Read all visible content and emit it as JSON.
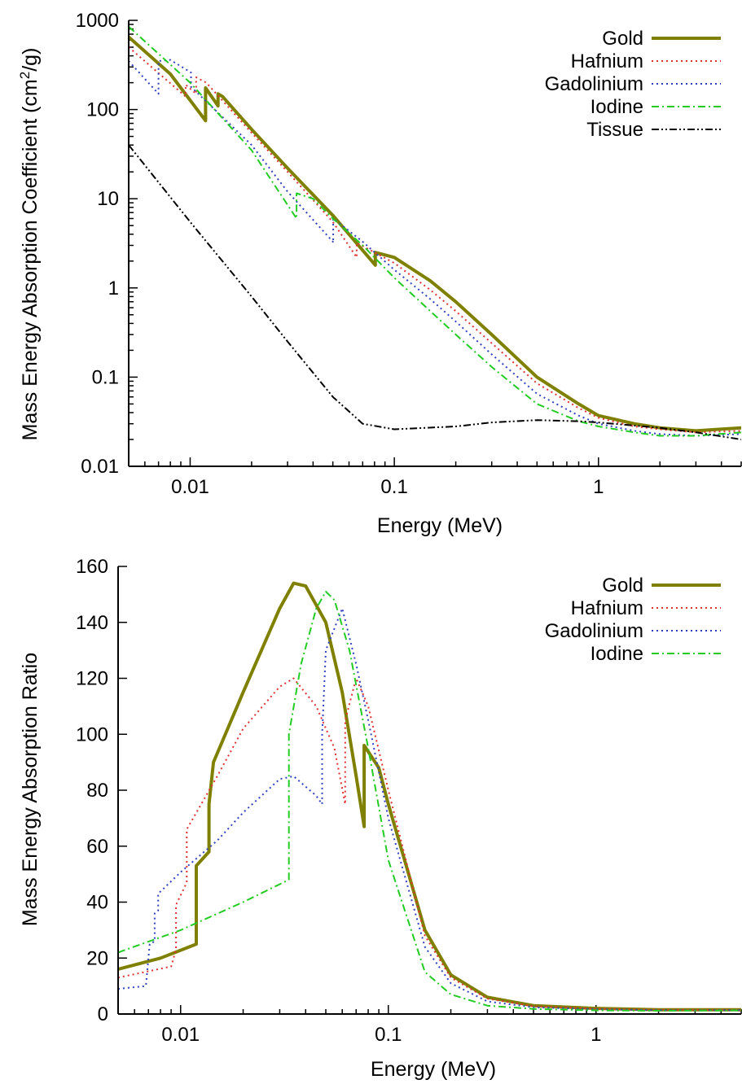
{
  "chart_data": [
    {
      "type": "line",
      "x_scale": "log",
      "y_scale": "log",
      "xlim": [
        0.005,
        5
      ],
      "ylim": [
        0.01,
        1000
      ],
      "xlabel": "Energy (MeV)",
      "ylabel_main": "Mass Energy Absorption Coefficient (cm",
      "ylabel_sup": "2",
      "ylabel_tail": "/g)",
      "x_ticks": [
        {
          "value": 0.01,
          "label": "0.01"
        },
        {
          "value": 0.1,
          "label": "0.1"
        },
        {
          "value": 1,
          "label": "1"
        }
      ],
      "y_ticks": [
        {
          "value": 0.01,
          "label": "0.01"
        },
        {
          "value": 0.1,
          "label": "0.1"
        },
        {
          "value": 1,
          "label": "1"
        },
        {
          "value": 10,
          "label": "10"
        },
        {
          "value": 100,
          "label": "100"
        },
        {
          "value": 1000,
          "label": "1000"
        }
      ],
      "legend_position": "top-right",
      "series": [
        {
          "name": "Gold",
          "color": "#808000",
          "style": "solid",
          "points": [
            [
              0.005,
              650
            ],
            [
              0.008,
              250
            ],
            [
              0.0119,
              75
            ],
            [
              0.0119,
              175
            ],
            [
              0.0137,
              110
            ],
            [
              0.0137,
              150
            ],
            [
              0.0144,
              140
            ],
            [
              0.02,
              60
            ],
            [
              0.03,
              22
            ],
            [
              0.05,
              6.5
            ],
            [
              0.0807,
              1.8
            ],
            [
              0.0807,
              2.5
            ],
            [
              0.1,
              2.2
            ],
            [
              0.15,
              1.2
            ],
            [
              0.2,
              0.7
            ],
            [
              0.3,
              0.3
            ],
            [
              0.5,
              0.1
            ],
            [
              0.8,
              0.05
            ],
            [
              1,
              0.037
            ],
            [
              1.5,
              0.03
            ],
            [
              2,
              0.027
            ],
            [
              3,
              0.025
            ],
            [
              5,
              0.027
            ]
          ]
        },
        {
          "name": "Hafnium",
          "color": "#e03030",
          "style": "dotted",
          "points": [
            [
              0.005,
              500
            ],
            [
              0.0095,
              140
            ],
            [
              0.0095,
              190
            ],
            [
              0.0107,
              150
            ],
            [
              0.0107,
              230
            ],
            [
              0.012,
              200
            ],
            [
              0.02,
              55
            ],
            [
              0.03,
              20
            ],
            [
              0.05,
              5.5
            ],
            [
              0.0654,
              2.2
            ],
            [
              0.0654,
              3.2
            ],
            [
              0.1,
              1.9
            ],
            [
              0.15,
              0.95
            ],
            [
              0.2,
              0.55
            ],
            [
              0.3,
              0.24
            ],
            [
              0.5,
              0.085
            ],
            [
              0.8,
              0.045
            ],
            [
              1,
              0.035
            ],
            [
              1.5,
              0.028
            ],
            [
              2,
              0.026
            ],
            [
              3,
              0.024
            ],
            [
              5,
              0.025
            ]
          ]
        },
        {
          "name": "Gadolinium",
          "color": "#3040c0",
          "style": "dotted",
          "points": [
            [
              0.005,
              350
            ],
            [
              0.007,
              150
            ],
            [
              0.007,
              350
            ],
            [
              0.008,
              360
            ],
            [
              0.0101,
              260
            ],
            [
              0.0101,
              180
            ],
            [
              0.02,
              40
            ],
            [
              0.03,
              12
            ],
            [
              0.05,
              3.3
            ],
            [
              0.0502,
              3.2
            ],
            [
              0.0502,
              6.0
            ],
            [
              0.07,
              3.3
            ],
            [
              0.1,
              1.6
            ],
            [
              0.15,
              0.75
            ],
            [
              0.2,
              0.42
            ],
            [
              0.3,
              0.18
            ],
            [
              0.5,
              0.065
            ],
            [
              0.8,
              0.037
            ],
            [
              1,
              0.03
            ],
            [
              1.5,
              0.025
            ],
            [
              2,
              0.023
            ],
            [
              3,
              0.022
            ],
            [
              5,
              0.023
            ]
          ]
        },
        {
          "name": "Iodine",
          "color": "#22cc22",
          "style": "dashdot",
          "points": [
            [
              0.005,
              850
            ],
            [
              0.01,
              200
            ],
            [
              0.02,
              35
            ],
            [
              0.0332,
              6.0
            ],
            [
              0.0332,
              11.5
            ],
            [
              0.04,
              10
            ],
            [
              0.05,
              6.0
            ],
            [
              0.07,
              3.0
            ],
            [
              0.1,
              1.3
            ],
            [
              0.15,
              0.55
            ],
            [
              0.2,
              0.3
            ],
            [
              0.3,
              0.13
            ],
            [
              0.5,
              0.05
            ],
            [
              0.8,
              0.032
            ],
            [
              1,
              0.028
            ],
            [
              1.5,
              0.024
            ],
            [
              2,
              0.022
            ],
            [
              3,
              0.022
            ],
            [
              5,
              0.024
            ]
          ]
        },
        {
          "name": "Tissue",
          "color": "#000000",
          "style": "dashdotdot",
          "points": [
            [
              0.005,
              40
            ],
            [
              0.01,
              5.5
            ],
            [
              0.02,
              0.8
            ],
            [
              0.03,
              0.25
            ],
            [
              0.05,
              0.06
            ],
            [
              0.07,
              0.03
            ],
            [
              0.1,
              0.026
            ],
            [
              0.2,
              0.028
            ],
            [
              0.3,
              0.031
            ],
            [
              0.5,
              0.033
            ],
            [
              0.8,
              0.032
            ],
            [
              1,
              0.031
            ],
            [
              2,
              0.027
            ],
            [
              3,
              0.024
            ],
            [
              5,
              0.02
            ]
          ]
        }
      ]
    },
    {
      "type": "line",
      "x_scale": "log",
      "y_scale": "linear",
      "xlim": [
        0.005,
        5
      ],
      "ylim": [
        0,
        160
      ],
      "xlabel": "Energy (MeV)",
      "ylabel": "Mass Energy Absorption Ratio",
      "x_ticks": [
        {
          "value": 0.01,
          "label": "0.01"
        },
        {
          "value": 0.1,
          "label": "0.1"
        },
        {
          "value": 1,
          "label": "1"
        }
      ],
      "y_ticks": [
        {
          "value": 0,
          "label": "0"
        },
        {
          "value": 20,
          "label": "20"
        },
        {
          "value": 40,
          "label": "40"
        },
        {
          "value": 60,
          "label": "60"
        },
        {
          "value": 80,
          "label": "80"
        },
        {
          "value": 100,
          "label": "100"
        },
        {
          "value": 120,
          "label": "120"
        },
        {
          "value": 140,
          "label": "140"
        },
        {
          "value": 160,
          "label": "160"
        }
      ],
      "legend_position": "top-right",
      "series": [
        {
          "name": "Gold",
          "color": "#808000",
          "style": "solid",
          "points": [
            [
              0.005,
              16
            ],
            [
              0.008,
              20
            ],
            [
              0.0119,
              25
            ],
            [
              0.0119,
              53
            ],
            [
              0.0137,
              58
            ],
            [
              0.0137,
              75
            ],
            [
              0.0144,
              90
            ],
            [
              0.02,
              115
            ],
            [
              0.03,
              145
            ],
            [
              0.035,
              154
            ],
            [
              0.04,
              153
            ],
            [
              0.05,
              140
            ],
            [
              0.06,
              115
            ],
            [
              0.07,
              85
            ],
            [
              0.0765,
              67
            ],
            [
              0.0765,
              96
            ],
            [
              0.09,
              88
            ],
            [
              0.1,
              75
            ],
            [
              0.15,
              30
            ],
            [
              0.2,
              14
            ],
            [
              0.3,
              6
            ],
            [
              0.5,
              3
            ],
            [
              1,
              2
            ],
            [
              2,
              1.5
            ],
            [
              5,
              1.5
            ]
          ]
        },
        {
          "name": "Hafnium",
          "color": "#e03030",
          "style": "dotted",
          "points": [
            [
              0.005,
              13
            ],
            [
              0.009,
              17
            ],
            [
              0.0095,
              23
            ],
            [
              0.0095,
              39
            ],
            [
              0.0107,
              47
            ],
            [
              0.0107,
              66
            ],
            [
              0.015,
              85
            ],
            [
              0.02,
              102
            ],
            [
              0.03,
              117
            ],
            [
              0.035,
              120
            ],
            [
              0.045,
              110
            ],
            [
              0.055,
              95
            ],
            [
              0.062,
              75
            ],
            [
              0.062,
              105
            ],
            [
              0.07,
              120
            ],
            [
              0.08,
              110
            ],
            [
              0.1,
              80
            ],
            [
              0.15,
              28
            ],
            [
              0.2,
              13
            ],
            [
              0.3,
              5.5
            ],
            [
              0.5,
              2.8
            ],
            [
              1,
              1.9
            ],
            [
              2,
              1.5
            ],
            [
              5,
              1.5
            ]
          ]
        },
        {
          "name": "Gadolinium",
          "color": "#3040c0",
          "style": "dotted",
          "points": [
            [
              0.005,
              9
            ],
            [
              0.0068,
              10
            ],
            [
              0.0071,
              25
            ],
            [
              0.0075,
              26
            ],
            [
              0.0075,
              36
            ],
            [
              0.0078,
              37
            ],
            [
              0.0078,
              43
            ],
            [
              0.0101,
              51
            ],
            [
              0.0101,
              51
            ],
            [
              0.015,
              62
            ],
            [
              0.02,
              72
            ],
            [
              0.03,
              84
            ],
            [
              0.035,
              85
            ],
            [
              0.045,
              78
            ],
            [
              0.048,
              75
            ],
            [
              0.048,
              100
            ],
            [
              0.05,
              130
            ],
            [
              0.06,
              145
            ],
            [
              0.07,
              125
            ],
            [
              0.08,
              105
            ],
            [
              0.1,
              70
            ],
            [
              0.15,
              24
            ],
            [
              0.2,
              11
            ],
            [
              0.3,
              4.5
            ],
            [
              0.5,
              2.4
            ],
            [
              1,
              1.7
            ],
            [
              2,
              1.4
            ],
            [
              5,
              1.4
            ]
          ]
        },
        {
          "name": "Iodine",
          "color": "#22cc22",
          "style": "dashdot",
          "points": [
            [
              0.005,
              22
            ],
            [
              0.01,
              30
            ],
            [
              0.02,
              40
            ],
            [
              0.0332,
              48
            ],
            [
              0.0332,
              100
            ],
            [
              0.038,
              125
            ],
            [
              0.045,
              145
            ],
            [
              0.05,
              151
            ],
            [
              0.055,
              148
            ],
            [
              0.065,
              130
            ],
            [
              0.08,
              95
            ],
            [
              0.1,
              55
            ],
            [
              0.15,
              15
            ],
            [
              0.2,
              7
            ],
            [
              0.3,
              3
            ],
            [
              0.5,
              1.8
            ],
            [
              1,
              1.3
            ],
            [
              2,
              1.2
            ],
            [
              5,
              1.3
            ]
          ]
        }
      ]
    }
  ]
}
